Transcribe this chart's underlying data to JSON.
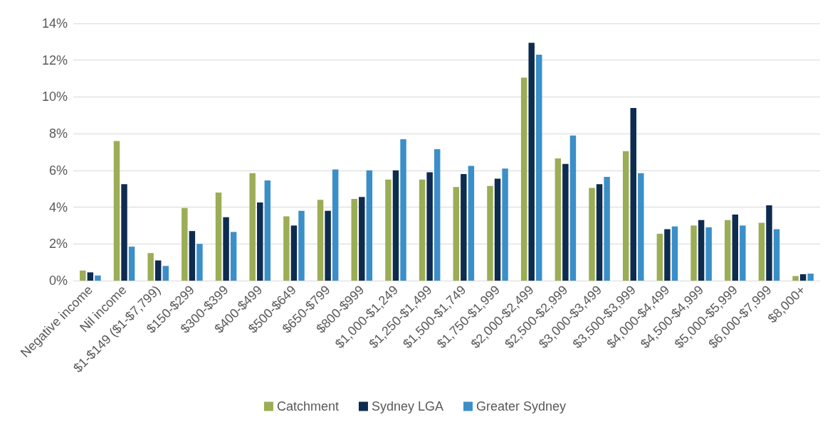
{
  "chart_data": {
    "type": "bar",
    "categories": [
      "Negative income",
      "Nil income",
      "$1-$149 ($1-$7,799)",
      "$150-$299",
      "$300-$399",
      "$400-$499",
      "$500-$649",
      "$650-$799",
      "$800-$999",
      "$1,000-$1,249",
      "$1,250-$1,499",
      "$1,500-$1,749",
      "$1,750-$1,999",
      "$2,000-$2,499",
      "$2,500-$2,999",
      "$3,000-$3,499",
      "$3,500-$3,999",
      "$4,000-$4,499",
      "$4,500-$4,999",
      "$5,000-$5,999",
      "$6,000-$7,999",
      "$8,000+"
    ],
    "series": [
      {
        "name": "Catchment",
        "color": "#9bad55",
        "values": [
          0.55,
          7.6,
          1.5,
          3.95,
          4.8,
          5.85,
          3.5,
          4.4,
          4.45,
          5.5,
          5.5,
          5.1,
          5.15,
          11.05,
          6.65,
          5.05,
          7.05,
          2.55,
          3.0,
          3.3,
          3.15,
          0.25
        ]
      },
      {
        "name": "Sydney LGA",
        "color": "#0e2b50",
        "values": [
          0.45,
          5.25,
          1.1,
          2.7,
          3.45,
          4.25,
          3.0,
          3.8,
          4.55,
          6.0,
          5.9,
          5.8,
          5.55,
          12.95,
          6.35,
          5.25,
          9.4,
          2.8,
          3.3,
          3.6,
          4.1,
          0.35
        ]
      },
      {
        "name": "Greater Sydney",
        "color": "#3b8fc8",
        "values": [
          0.28,
          1.85,
          0.8,
          2.0,
          2.65,
          5.45,
          3.8,
          6.05,
          6.0,
          7.7,
          7.15,
          6.25,
          6.1,
          12.3,
          7.9,
          5.65,
          5.85,
          2.95,
          2.9,
          3.0,
          2.8,
          0.38
        ]
      }
    ],
    "ylim": [
      0,
      14
    ],
    "yticks": [
      {
        "value": 0,
        "label": "0%"
      },
      {
        "value": 2,
        "label": "2%"
      },
      {
        "value": 4,
        "label": "4%"
      },
      {
        "value": 6,
        "label": "6%"
      },
      {
        "value": 8,
        "label": "8%"
      },
      {
        "value": 10,
        "label": "10%"
      },
      {
        "value": 12,
        "label": "12%"
      },
      {
        "value": 14,
        "label": "14%"
      }
    ],
    "grid": "y",
    "legend": "bottom"
  }
}
